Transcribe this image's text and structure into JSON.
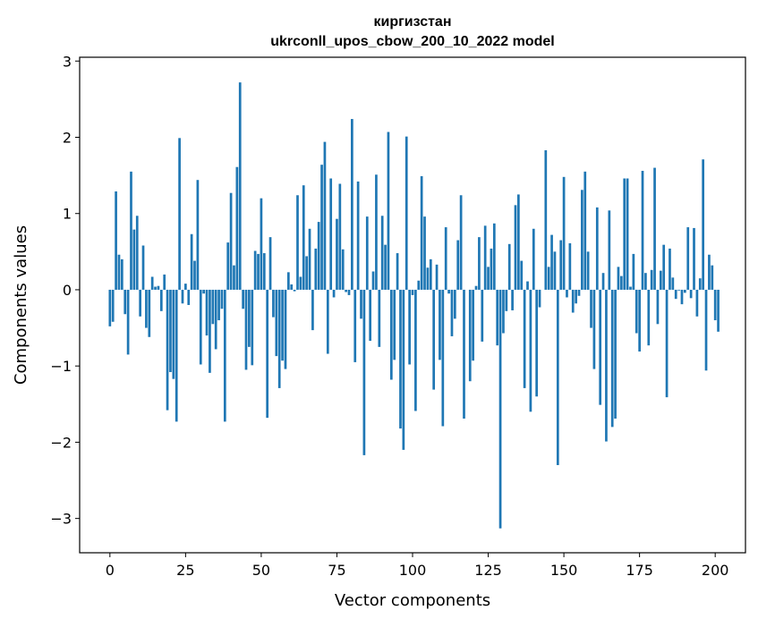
{
  "chart_data": {
    "type": "bar",
    "title": "киргизстан",
    "subtitle": "ukrconll_upos_cbow_200_10_2022 model",
    "xlabel": "Vector components",
    "ylabel": "Components values",
    "xlim": [
      -10,
      210
    ],
    "ylim": [
      -3.45,
      3.05
    ],
    "xticks": [
      0,
      25,
      50,
      75,
      100,
      125,
      150,
      175,
      200
    ],
    "yticks": [
      -3,
      -2,
      -1,
      0,
      1,
      2,
      3
    ],
    "xtick_labels": [
      "0",
      "25",
      "50",
      "75",
      "100",
      "125",
      "150",
      "175",
      "200"
    ],
    "ytick_labels": [
      "−3",
      "−2",
      "−1",
      "0",
      "1",
      "2",
      "3"
    ],
    "grid": false,
    "bar_color": "#1f77b4",
    "values": [
      -0.48,
      -0.42,
      1.29,
      0.46,
      0.4,
      -0.32,
      -0.85,
      1.55,
      0.79,
      0.97,
      -0.35,
      0.58,
      -0.5,
      -0.62,
      0.17,
      0.04,
      0.05,
      -0.28,
      0.2,
      -1.58,
      -1.08,
      -1.17,
      -1.73,
      1.99,
      -0.18,
      0.08,
      -0.2,
      0.73,
      0.38,
      1.44,
      -0.98,
      -0.05,
      -0.6,
      -1.09,
      -0.45,
      -0.78,
      -0.4,
      -0.25,
      -1.73,
      0.62,
      1.27,
      0.32,
      1.61,
      2.72,
      -0.25,
      -1.05,
      -0.75,
      -0.99,
      0.51,
      0.47,
      1.2,
      0.48,
      -1.68,
      0.69,
      -0.36,
      -0.87,
      -1.29,
      -0.93,
      -1.04,
      0.23,
      0.07,
      -0.02,
      1.24,
      0.17,
      1.37,
      0.44,
      0.8,
      -0.53,
      0.54,
      0.89,
      1.64,
      1.94,
      -0.84,
      1.46,
      -0.1,
      0.93,
      1.39,
      0.53,
      -0.03,
      -0.07,
      2.24,
      -0.95,
      1.42,
      -0.38,
      -2.17,
      0.96,
      -0.67,
      0.24,
      1.51,
      -0.75,
      0.97,
      0.59,
      2.07,
      -1.18,
      -0.92,
      0.48,
      -1.82,
      -2.1,
      2.01,
      -0.98,
      -0.07,
      -1.59,
      0.12,
      1.49,
      0.96,
      0.29,
      0.4,
      -1.31,
      0.33,
      -0.92,
      -1.79,
      0.82,
      -0.05,
      -0.61,
      -0.38,
      0.65,
      1.24,
      -1.69,
      0.0,
      -1.2,
      -0.93,
      0.05,
      0.69,
      -0.68,
      0.84,
      0.3,
      0.54,
      0.87,
      -0.73,
      -3.13,
      -0.57,
      -0.28,
      0.6,
      -0.27,
      1.11,
      1.25,
      0.38,
      -1.29,
      0.11,
      -1.6,
      0.8,
      -1.4,
      -0.23,
      0.0,
      1.83,
      0.3,
      0.72,
      0.5,
      -2.3,
      0.65,
      1.48,
      -0.1,
      0.61,
      -0.3,
      -0.18,
      -0.08,
      1.31,
      1.55,
      0.5,
      -0.5,
      -1.04,
      1.08,
      -1.51,
      0.22,
      -1.99,
      1.04,
      -1.8,
      -1.69,
      0.3,
      0.18,
      1.46,
      1.46,
      0.04,
      0.47,
      -0.57,
      -0.81,
      1.56,
      0.22,
      -0.73,
      0.26,
      1.6,
      -0.45,
      0.25,
      0.59,
      -1.41,
      0.54,
      0.16,
      -0.12,
      -0.01,
      -0.19,
      -0.04,
      0.82,
      -0.11,
      0.81,
      -0.35,
      0.15,
      1.71,
      -1.06,
      0.46,
      0.32,
      -0.4,
      -0.55
    ]
  }
}
